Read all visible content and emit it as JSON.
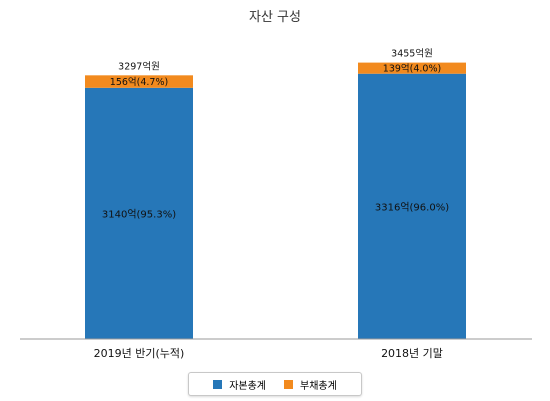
{
  "chart_data": {
    "type": "bar",
    "stacked": true,
    "title": "자산 구성",
    "categories": [
      "2019년 반기(누적)",
      "2018년 기말"
    ],
    "series": [
      {
        "name": "자본총계",
        "color": "#2677b8",
        "values": [
          3140,
          3316
        ],
        "labels": [
          "3140억(95.3%)",
          "3316억(96.0%)"
        ]
      },
      {
        "name": "부채총계",
        "color": "#f28a1e",
        "values": [
          156,
          139
        ],
        "labels": [
          "156억(4.7%)",
          "139억(4.0%)"
        ]
      }
    ],
    "totals": [
      "3297억원",
      "3455억원"
    ],
    "ylim": [
      0,
      3800
    ],
    "grid": false,
    "legend": "bottom"
  }
}
